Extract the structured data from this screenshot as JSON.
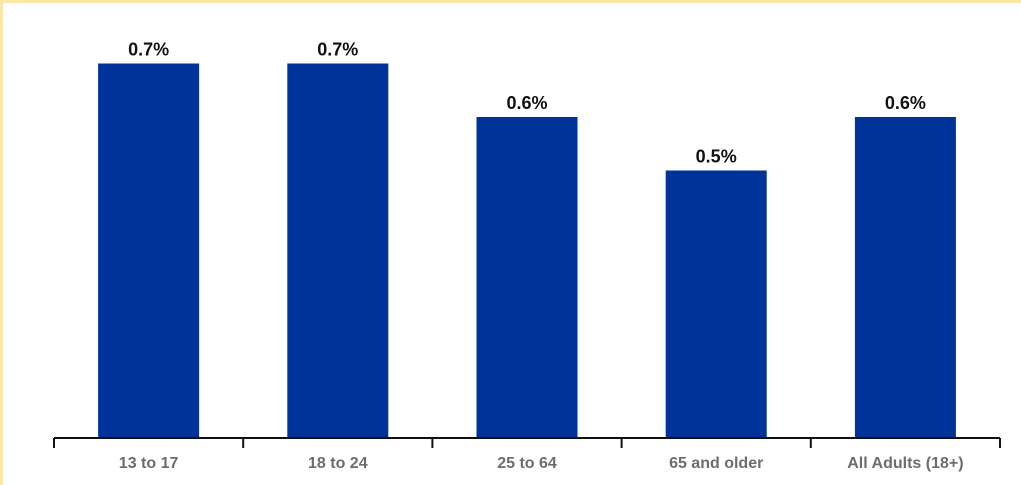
{
  "chart_data": {
    "type": "bar",
    "categories": [
      "13 to 17",
      "18 to 24",
      "25 to 64",
      "65 and older",
      "All Adults (18+)"
    ],
    "values": [
      0.7,
      0.7,
      0.6,
      0.5,
      0.6
    ],
    "value_labels": [
      "0.7%",
      "0.7%",
      "0.6%",
      "0.5%",
      "0.6%"
    ],
    "title": "",
    "xlabel": "",
    "ylabel": "",
    "ylim": [
      0,
      0.8
    ],
    "grid": false,
    "legend": "none",
    "colors": {
      "bar": "#00339a",
      "axis": "#111111",
      "frame": "#fbe7a7"
    }
  }
}
